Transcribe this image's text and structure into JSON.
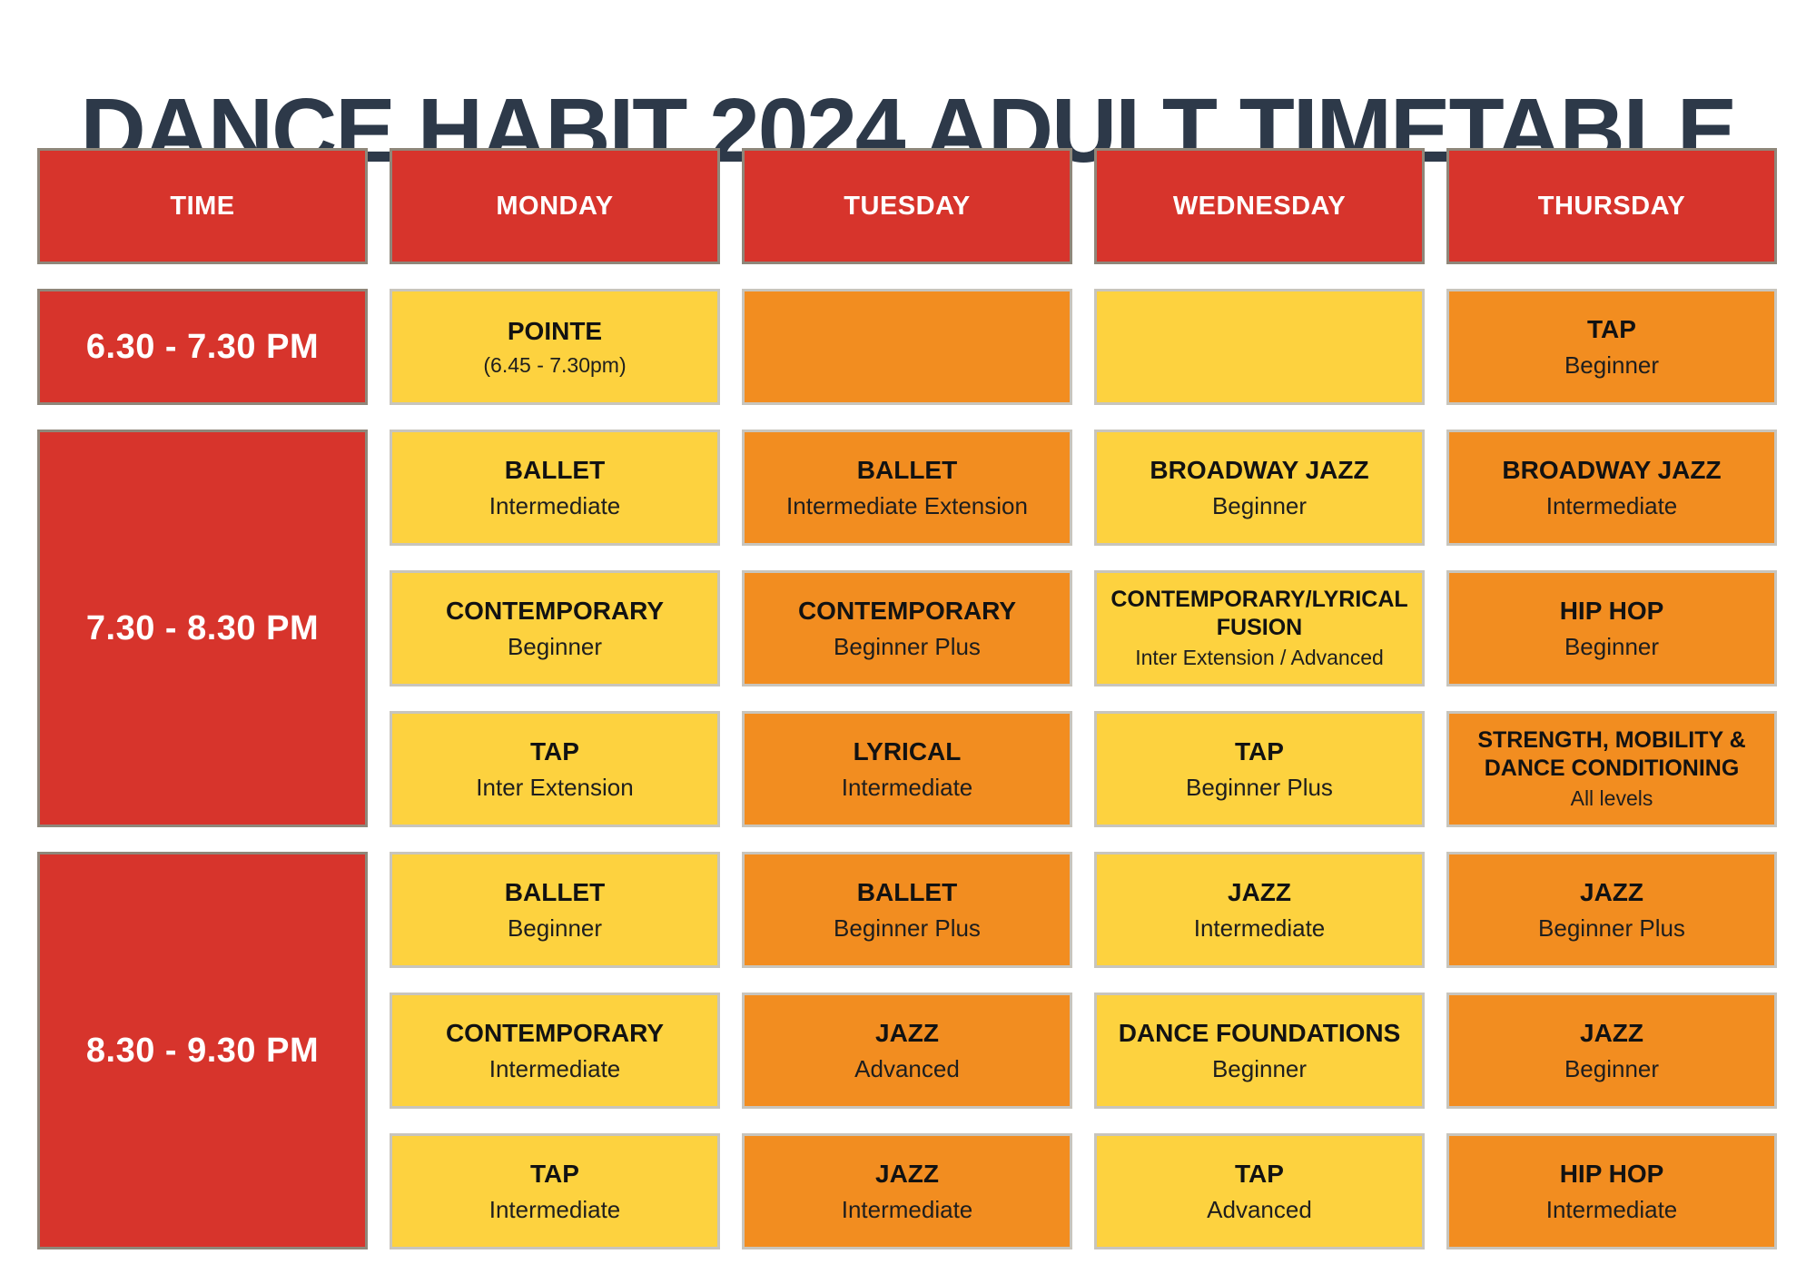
{
  "title": "DANCE HABIT 2024 ADULT TIMETABLE",
  "colors": {
    "header_red": "#d7342c",
    "cell_yellow": "#fdd23f",
    "cell_orange": "#f28d20",
    "title_navy": "#2d3949"
  },
  "headers": {
    "time": "TIME",
    "days": [
      "MONDAY",
      "TUESDAY",
      "WEDNESDAY",
      "THURSDAY"
    ]
  },
  "time_slots": [
    "6.30 - 7.30 PM",
    "7.30 - 8.30 PM",
    "8.30 - 9.30 PM"
  ],
  "schedule": {
    "monday": [
      {
        "name": "POINTE",
        "level": "(6.45 - 7.30pm)"
      },
      {
        "name": "BALLET",
        "level": "Intermediate"
      },
      {
        "name": "CONTEMPORARY",
        "level": "Beginner"
      },
      {
        "name": "TAP",
        "level": "Inter Extension"
      },
      {
        "name": "BALLET",
        "level": "Beginner"
      },
      {
        "name": "CONTEMPORARY",
        "level": "Intermediate"
      },
      {
        "name": "TAP",
        "level": "Intermediate"
      }
    ],
    "tuesday": [
      {
        "name": "",
        "level": ""
      },
      {
        "name": "BALLET",
        "level": "Intermediate Extension"
      },
      {
        "name": "CONTEMPORARY",
        "level": "Beginner Plus"
      },
      {
        "name": "LYRICAL",
        "level": "Intermediate"
      },
      {
        "name": "BALLET",
        "level": "Beginner Plus"
      },
      {
        "name": "JAZZ",
        "level": "Advanced"
      },
      {
        "name": "JAZZ",
        "level": "Intermediate"
      }
    ],
    "wednesday": [
      {
        "name": "",
        "level": ""
      },
      {
        "name": "BROADWAY JAZZ",
        "level": "Beginner"
      },
      {
        "name": "CONTEMPORARY/LYRICAL FUSION",
        "level": "Inter Extension / Advanced"
      },
      {
        "name": "TAP",
        "level": "Beginner Plus"
      },
      {
        "name": "JAZZ",
        "level": "Intermediate"
      },
      {
        "name": "DANCE FOUNDATIONS",
        "level": "Beginner"
      },
      {
        "name": "TAP",
        "level": "Advanced"
      }
    ],
    "thursday": [
      {
        "name": "TAP",
        "level": "Beginner"
      },
      {
        "name": "BROADWAY JAZZ",
        "level": "Intermediate"
      },
      {
        "name": "HIP HOP",
        "level": "Beginner"
      },
      {
        "name": "STRENGTH, MOBILITY & DANCE CONDITIONING",
        "level": "All levels"
      },
      {
        "name": "JAZZ",
        "level": "Beginner Plus"
      },
      {
        "name": "JAZZ",
        "level": "Beginner"
      },
      {
        "name": "HIP HOP",
        "level": "Intermediate"
      }
    ]
  }
}
